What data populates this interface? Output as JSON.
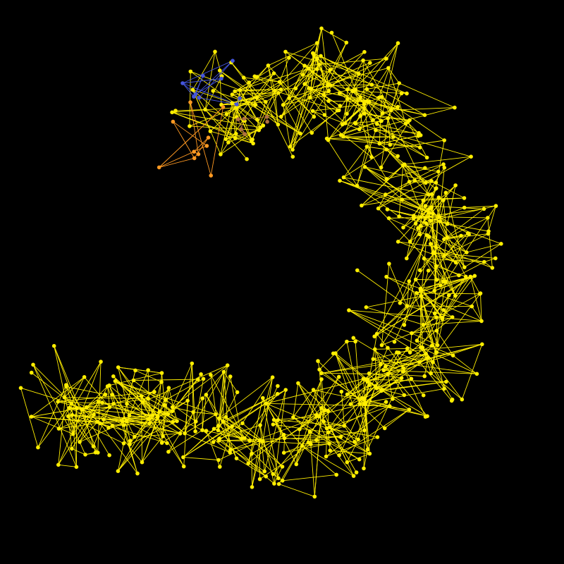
{
  "graph": {
    "background_color": "#000000",
    "colors": {
      "main": "#ffee00",
      "blue_cluster": "#4455dd",
      "orange_cluster": "#ff9922",
      "brown_cluster": "#b07040"
    },
    "clusters": [
      {
        "name": "blue-cluster",
        "color_key": "blue_cluster"
      },
      {
        "name": "orange-cluster",
        "color_key": "orange_cluster"
      },
      {
        "name": "brown-cluster",
        "color_key": "brown_cluster"
      },
      {
        "name": "main-chain",
        "color_key": "main"
      }
    ]
  }
}
